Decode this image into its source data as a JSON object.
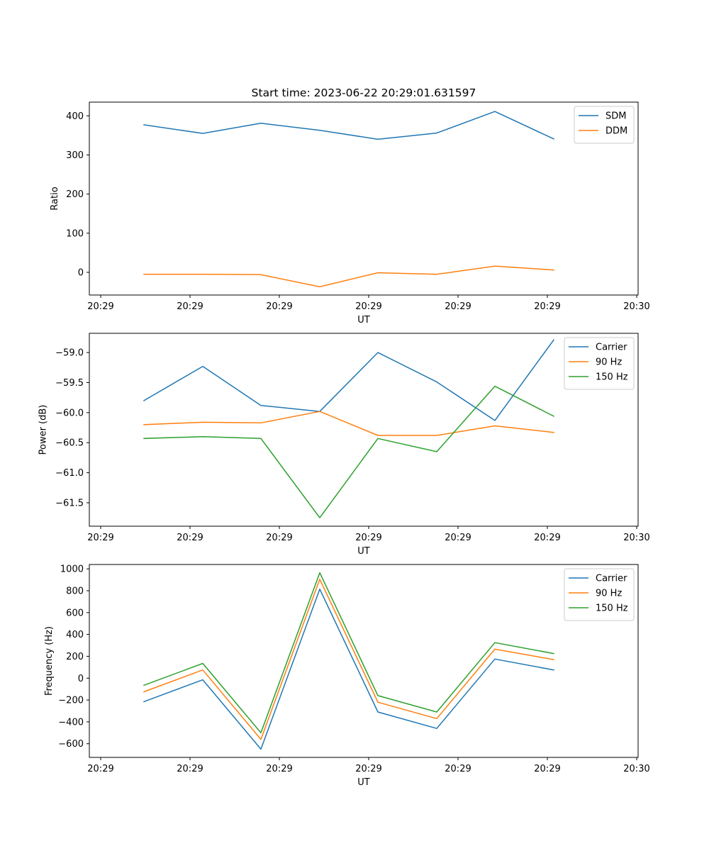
{
  "figure": {
    "title": "Start time: 2023-06-22 20:29:01.631597"
  },
  "colors": {
    "blue": "#1f77b4",
    "orange": "#ff7f0e",
    "green": "#2ca02c"
  },
  "chart_data": [
    {
      "type": "line",
      "title": "Start time: 2023-06-22 20:29:01.631597",
      "xlabel": "UT",
      "ylabel": "Ratio",
      "x_tick_labels": [
        "20:29",
        "20:29",
        "20:29",
        "20:29",
        "20:29",
        "20:29",
        "20:30"
      ],
      "y_ticks": [
        0,
        100,
        200,
        300,
        400
      ],
      "ylim": [
        -58,
        435
      ],
      "legend": "top-right",
      "grid": false,
      "series": [
        {
          "name": "SDM",
          "color": "#1f77b4",
          "values": [
            377,
            355,
            381,
            363,
            340,
            356,
            411,
            341
          ]
        },
        {
          "name": "DDM",
          "color": "#ff7f0e",
          "values": [
            -5,
            -5,
            -6,
            -37,
            -1,
            -5,
            16,
            6
          ]
        }
      ]
    },
    {
      "type": "line",
      "title": "",
      "xlabel": "UT",
      "ylabel": "Power (dB)",
      "x_tick_labels": [
        "20:29",
        "20:29",
        "20:29",
        "20:29",
        "20:29",
        "20:29",
        "20:30"
      ],
      "y_ticks": [
        -61.5,
        -61.0,
        -60.5,
        -60.0,
        -59.5,
        -59.0
      ],
      "y_tick_labels": [
        "−61.5",
        "−61.0",
        "−60.5",
        "−60.0",
        "−59.5",
        "−59.0"
      ],
      "ylim": [
        -61.89,
        -58.68
      ],
      "legend": "top-right",
      "grid": false,
      "series": [
        {
          "name": "Carrier",
          "color": "#1f77b4",
          "values": [
            -59.8,
            -59.23,
            -59.88,
            -59.98,
            -59.0,
            -59.49,
            -60.13,
            -58.79
          ]
        },
        {
          "name": "90 Hz",
          "color": "#ff7f0e",
          "values": [
            -60.2,
            -60.16,
            -60.17,
            -59.98,
            -60.38,
            -60.38,
            -60.22,
            -60.33
          ]
        },
        {
          "name": "150 Hz",
          "color": "#2ca02c",
          "values": [
            -60.43,
            -60.4,
            -60.43,
            -61.75,
            -60.43,
            -60.65,
            -59.56,
            -60.06
          ]
        }
      ]
    },
    {
      "type": "line",
      "title": "",
      "xlabel": "UT",
      "ylabel": "Frequency (Hz)",
      "x_tick_labels": [
        "20:29",
        "20:29",
        "20:29",
        "20:29",
        "20:29",
        "20:29",
        "20:30"
      ],
      "y_ticks": [
        -600,
        -400,
        -200,
        0,
        200,
        400,
        600,
        800,
        1000
      ],
      "y_tick_labels": [
        "−600",
        "−400",
        "−200",
        "0",
        "200",
        "400",
        "600",
        "800",
        "1000"
      ],
      "ylim": [
        -725,
        1040
      ],
      "legend": "top-right",
      "grid": false,
      "series": [
        {
          "name": "Carrier",
          "color": "#1f77b4",
          "values": [
            -215,
            -15,
            -650,
            815,
            -310,
            -460,
            175,
            75
          ]
        },
        {
          "name": "90 Hz",
          "color": "#ff7f0e",
          "values": [
            -125,
            75,
            -560,
            905,
            -220,
            -370,
            265,
            170
          ]
        },
        {
          "name": "150 Hz",
          "color": "#2ca02c",
          "values": [
            -65,
            135,
            -500,
            965,
            -160,
            -310,
            325,
            225
          ]
        }
      ]
    }
  ]
}
